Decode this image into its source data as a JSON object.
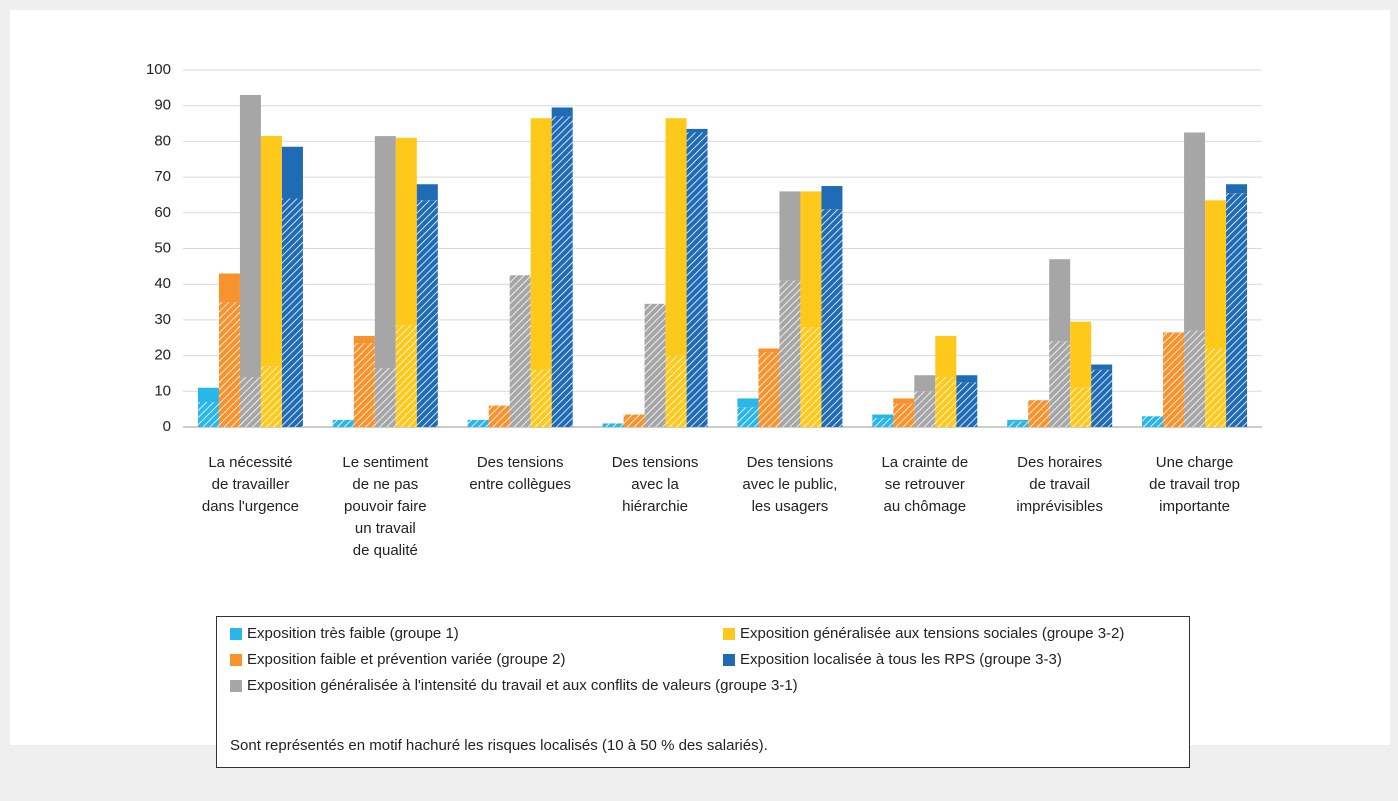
{
  "chart_data": {
    "type": "bar",
    "stacked": true,
    "categories": [
      [
        "La nécessité",
        "de travailler",
        "dans l'urgence"
      ],
      [
        "Le sentiment",
        "de ne pas",
        "pouvoir faire",
        "un travail",
        "de qualité"
      ],
      [
        "Des tensions",
        "entre collègues"
      ],
      [
        "Des tensions",
        "avec la",
        "hiérarchie"
      ],
      [
        "Des tensions",
        "avec le public,",
        "les usagers"
      ],
      [
        "La crainte de",
        "se retrouver",
        "au chômage"
      ],
      [
        "Des horaires",
        "de travail",
        "imprévisibles"
      ],
      [
        "Une charge",
        "de travail trop",
        "importante"
      ]
    ],
    "series": [
      {
        "name": "Exposition très faible (groupe 1)",
        "color": "#29b6e8",
        "localized": [
          7,
          2,
          2,
          1,
          5.5,
          2.5,
          1.5,
          3
        ],
        "generalized": [
          4,
          0,
          0,
          0,
          2.5,
          1,
          0.5,
          0
        ]
      },
      {
        "name": "Exposition faible et prévention variée (groupe 2)",
        "color": "#f7922d",
        "localized": [
          35,
          23.5,
          6,
          3.5,
          21,
          6.5,
          7.5,
          26.5
        ],
        "generalized": [
          8,
          2,
          0,
          0,
          1,
          1.5,
          0,
          0
        ]
      },
      {
        "name": "Exposition généralisée à l'intensité du travail et aux conflits de valeurs (groupe 3-1)",
        "color": "#a6a6a6",
        "localized": [
          14,
          16.5,
          42.5,
          34.5,
          41,
          10,
          24,
          27
        ],
        "generalized": [
          79,
          65,
          0,
          0,
          25,
          4.5,
          23,
          55.5
        ]
      },
      {
        "name": "Exposition généralisée aux tensions sociales (groupe 3-2)",
        "color": "#ffc91b",
        "localized": [
          17,
          28.5,
          16,
          20,
          28,
          14,
          11,
          22
        ],
        "generalized": [
          64.5,
          52.5,
          70.5,
          66.5,
          38,
          11.5,
          18.5,
          41.5
        ]
      },
      {
        "name": "Exposition localisée à tous les RPS (groupe 3-3)",
        "color": "#1f6bb5",
        "localized": [
          64,
          63.5,
          87,
          82.5,
          61,
          12.5,
          16,
          65.5
        ],
        "generalized": [
          14.5,
          4.5,
          2.5,
          1,
          6.5,
          2,
          1.5,
          2.5
        ]
      }
    ],
    "ylim": [
      0,
      100
    ],
    "yticks": [
      0,
      10,
      20,
      30,
      40,
      50,
      60,
      70,
      80,
      90,
      100
    ],
    "grid": true,
    "note": "Sont représentés en motif hachuré les risques localisés (10 à 50 % des salariés)."
  }
}
